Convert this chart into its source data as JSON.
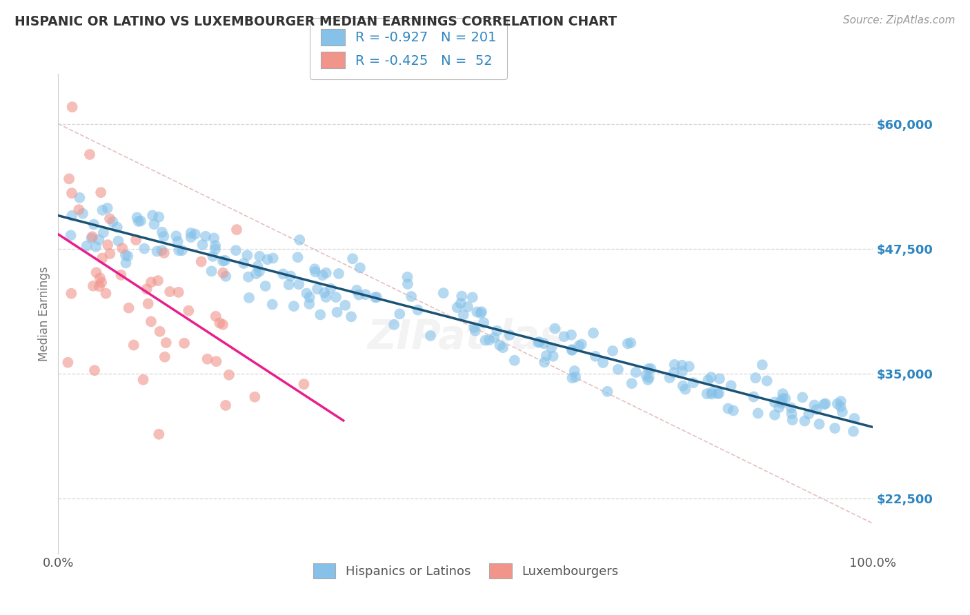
{
  "title": "HISPANIC OR LATINO VS LUXEMBOURGER MEDIAN EARNINGS CORRELATION CHART",
  "source": "Source: ZipAtlas.com",
  "ylabel": "Median Earnings",
  "legend_labels": [
    "Hispanics or Latinos",
    "Luxembourgers"
  ],
  "legend_r": [
    -0.927,
    -0.425
  ],
  "legend_n": [
    201,
    52
  ],
  "blue_color": "#85c1e9",
  "pink_color": "#f1948a",
  "blue_line_color": "#1a5276",
  "pink_line_color": "#e91e8c",
  "ref_line_color": "#e0b0b0",
  "grid_color": "#d5d5d5",
  "yticks": [
    22500,
    35000,
    47500,
    60000
  ],
  "ytick_labels": [
    "$22,500",
    "$35,000",
    "$47,500",
    "$60,000"
  ],
  "xlim": [
    0.0,
    1.0
  ],
  "ylim": [
    17000,
    65000
  ],
  "background_color": "#ffffff",
  "title_color": "#333333",
  "axis_label_color": "#777777",
  "tick_label_color": "#2e86c1",
  "seed": 42,
  "n_blue": 201,
  "n_pink": 52
}
